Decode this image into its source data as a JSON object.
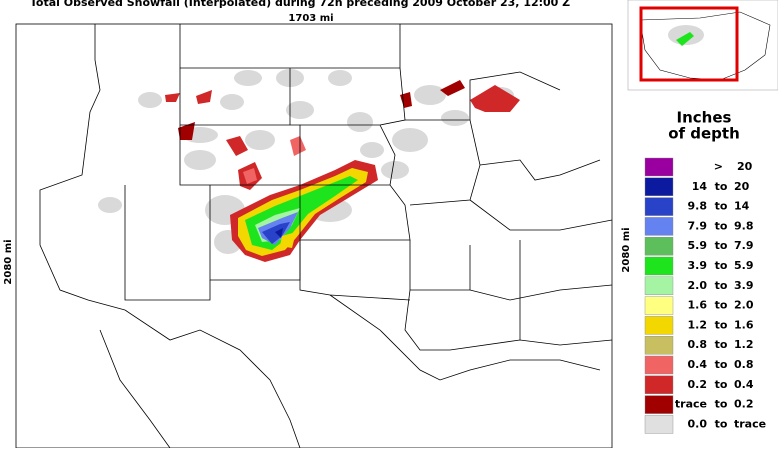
{
  "header": {
    "title": "Total Observed Snowfall (Interpolated) during 72h preceding 2009 October 23, 12:00 Z"
  },
  "map": {
    "width_label": "1703 mi",
    "height_label": "2080 mi"
  },
  "legend": {
    "title_lines": [
      "Inches",
      "of depth"
    ],
    "rows": [
      {
        "color": "#9a00a0",
        "cells": [
          ">",
          "20"
        ]
      },
      {
        "color": "#0c1aa0",
        "cells": [
          "14",
          "to",
          "20"
        ]
      },
      {
        "color": "#2842c8",
        "cells": [
          "9.8",
          "to",
          "14"
        ]
      },
      {
        "color": "#6482f0",
        "cells": [
          "7.9",
          "to",
          "9.8"
        ]
      },
      {
        "color": "#5cbf5c",
        "cells": [
          "5.9",
          "to",
          "7.9"
        ]
      },
      {
        "color": "#1ee41e",
        "cells": [
          "3.9",
          "to",
          "5.9"
        ]
      },
      {
        "color": "#a4f4a4",
        "cells": [
          "2.0",
          "to",
          "3.9"
        ]
      },
      {
        "color": "#ffff80",
        "cells": [
          "1.6",
          "to",
          "2.0"
        ]
      },
      {
        "color": "#f2d800",
        "cells": [
          "1.2",
          "to",
          "1.6"
        ]
      },
      {
        "color": "#c8c060",
        "cells": [
          "0.8",
          "to",
          "1.2"
        ]
      },
      {
        "color": "#f06464",
        "cells": [
          "0.4",
          "to",
          "0.8"
        ]
      },
      {
        "color": "#d02828",
        "cells": [
          "0.2",
          "to",
          "0.4"
        ]
      },
      {
        "color": "#a00000",
        "cells": [
          "trace",
          "to",
          "0.2"
        ]
      },
      {
        "color": "#e0e0e0",
        "cells": [
          "0.0",
          "to",
          "trace"
        ]
      }
    ]
  }
}
